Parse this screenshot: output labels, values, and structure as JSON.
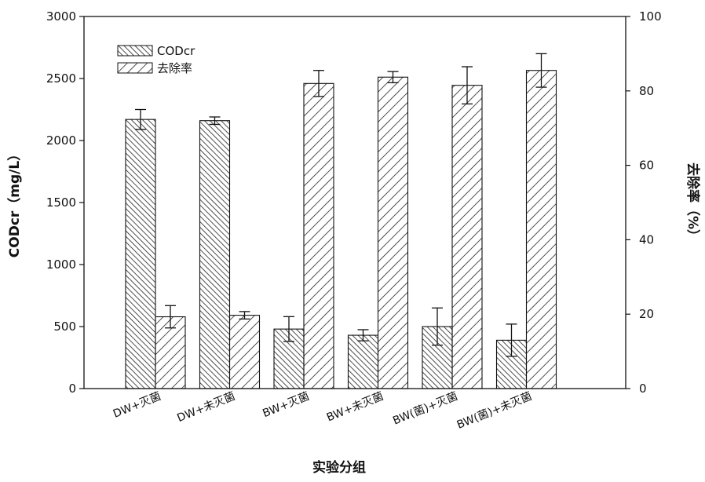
{
  "chart_data": {
    "type": "bar",
    "title": "",
    "xlabel": "实验分组",
    "ylabel_left": "CODcr（mg/L）",
    "ylabel_right": "去除率（%）",
    "ylim_left": [
      0,
      3000
    ],
    "ylim_right": [
      0,
      100
    ],
    "yticks_left": [
      "0",
      "500",
      "1000",
      "1500",
      "2000",
      "2500",
      "3000"
    ],
    "yticks_right": [
      "0",
      "20",
      "40",
      "60",
      "80",
      "100"
    ],
    "categories": [
      "DW+灭菌",
      "DW+未灭菌",
      "BW+灭菌",
      "BW+未灭菌",
      "BW(菌)+灭菌",
      "BW(菌)+未灭菌"
    ],
    "legend_position": "top-left",
    "grid": false,
    "series": [
      {
        "name": "CODcr",
        "axis": "left",
        "pattern": "hatch-dense",
        "values": [
          2170,
          2160,
          480,
          430,
          500,
          390
        ],
        "errors": [
          80,
          30,
          100,
          45,
          150,
          130
        ]
      },
      {
        "name": "去除率",
        "axis": "right",
        "pattern": "hatch-sparse",
        "values": [
          19.3,
          19.7,
          82.0,
          83.7,
          81.5,
          85.5
        ],
        "errors": [
          3.0,
          1.0,
          3.5,
          1.5,
          5.0,
          4.5
        ]
      }
    ]
  }
}
